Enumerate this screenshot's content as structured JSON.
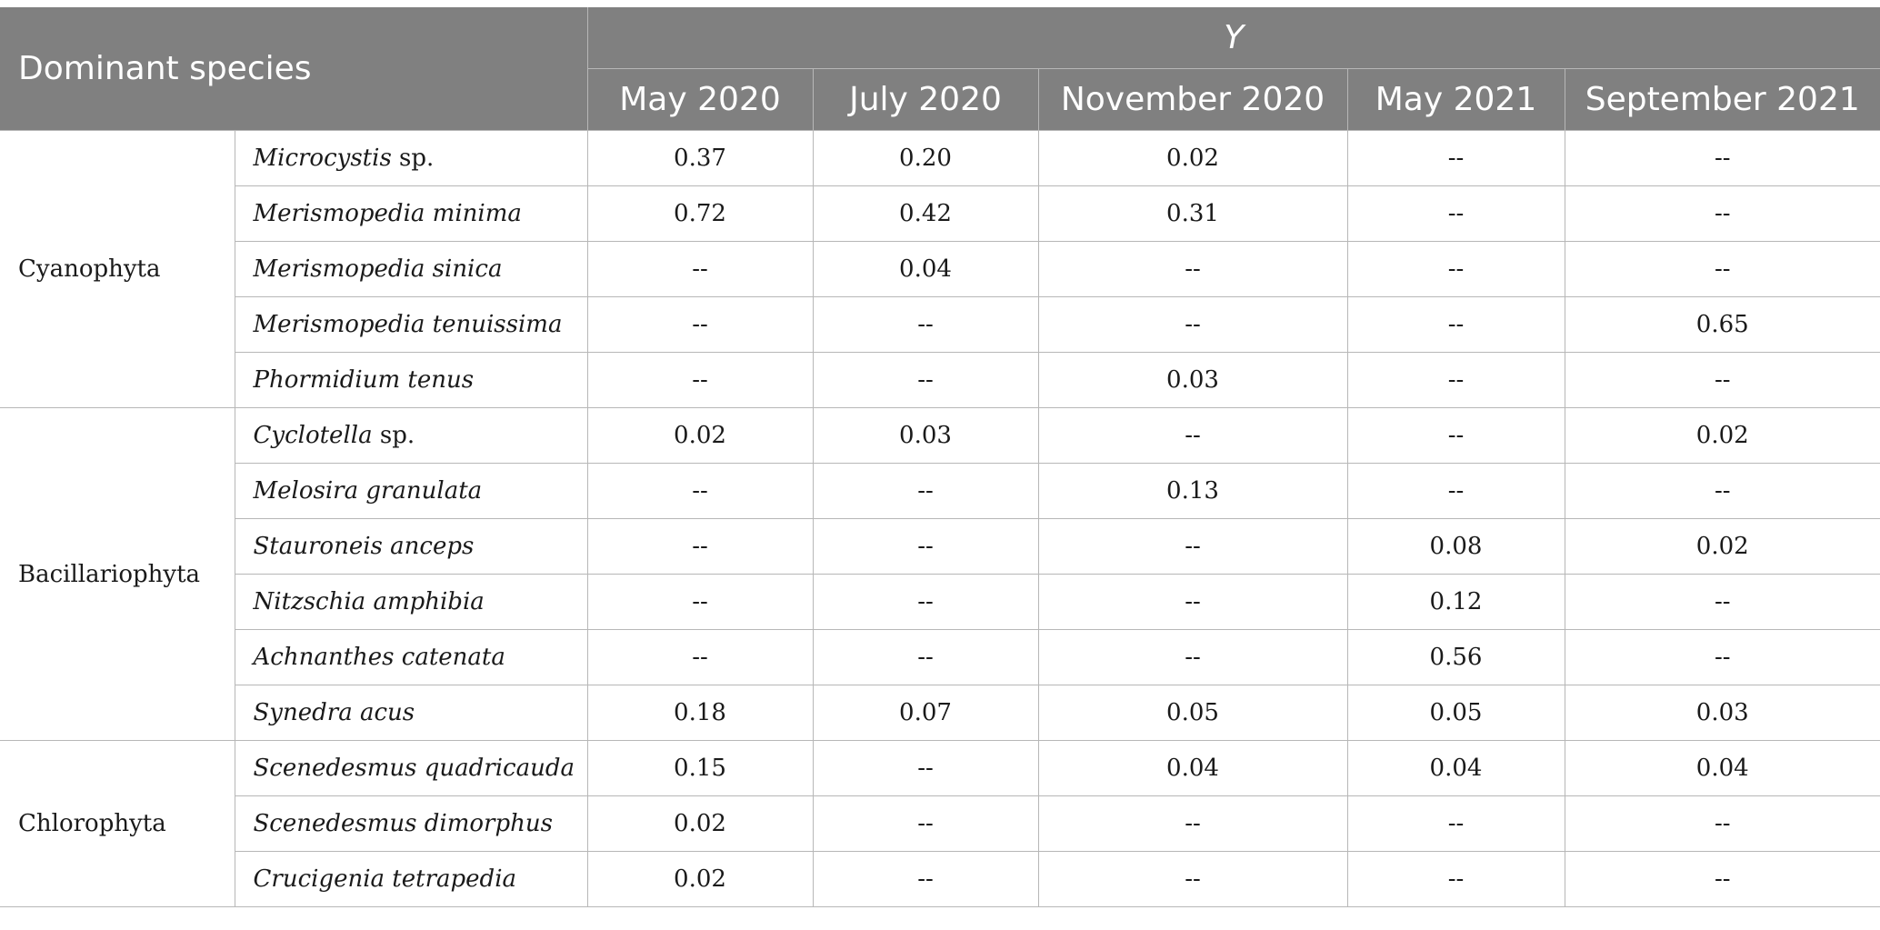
{
  "header": {
    "corner": "Dominant species",
    "y_label": "Y",
    "months": [
      "May 2020",
      "July 2020",
      "November 2020",
      "May 2021",
      "September 2021"
    ]
  },
  "rows": [
    {
      "group": "Cyanophyta",
      "species_italic": "Microcystis",
      "species_suffix": " sp.",
      "values": [
        "0.37",
        "0.20",
        "0.02",
        "--",
        "--"
      ]
    },
    {
      "group": "",
      "species_italic": "Merismopedia minima",
      "species_suffix": "",
      "values": [
        "0.72",
        "0.42",
        "0.31",
        "--",
        "--"
      ]
    },
    {
      "group": "",
      "species_italic": "Merismopedia sinica",
      "species_suffix": "",
      "values": [
        "--",
        "0.04",
        "--",
        "--",
        "--"
      ]
    },
    {
      "group": "",
      "species_italic": "Merismopedia tenuissima",
      "species_suffix": "",
      "values": [
        "--",
        "--",
        "--",
        "--",
        "0.65"
      ]
    },
    {
      "group": "",
      "species_italic": "Phormidium tenus",
      "species_suffix": "",
      "values": [
        "--",
        "--",
        "0.03",
        "--",
        "--"
      ]
    },
    {
      "group": "Bacillariophyta",
      "species_italic": "Cyclotella",
      "species_suffix": " sp.",
      "values": [
        "0.02",
        "0.03",
        "--",
        "--",
        "0.02"
      ]
    },
    {
      "group": "",
      "species_italic": "Melosira granulata",
      "species_suffix": "",
      "values": [
        "--",
        "--",
        "0.13",
        "--",
        "--"
      ]
    },
    {
      "group": "",
      "species_italic": "Stauroneis anceps",
      "species_suffix": "",
      "values": [
        "--",
        "--",
        "--",
        "0.08",
        "0.02"
      ]
    },
    {
      "group": "",
      "species_italic": "Nitzschia amphibia",
      "species_suffix": "",
      "values": [
        "--",
        "--",
        "--",
        "0.12",
        "--"
      ]
    },
    {
      "group": "",
      "species_italic": "Achnanthes catenata",
      "species_suffix": "",
      "values": [
        "--",
        "--",
        "--",
        "0.56",
        "--"
      ]
    },
    {
      "group": "",
      "species_italic": "Synedra acus",
      "species_suffix": "",
      "values": [
        "0.18",
        "0.07",
        "0.05",
        "0.05",
        "0.03"
      ]
    },
    {
      "group": "Chlorophyta",
      "species_italic": "Scenedesmus quadricauda",
      "species_suffix": "",
      "values": [
        "0.15",
        "--",
        "0.04",
        "0.04",
        "0.04"
      ]
    },
    {
      "group": "",
      "species_italic": "Scenedesmus dimorphus",
      "species_suffix": "",
      "values": [
        "0.02",
        "--",
        "--",
        "--",
        "--"
      ]
    },
    {
      "group": "",
      "species_italic": "Crucigenia tetrapedia",
      "species_suffix": "",
      "values": [
        "0.02",
        "--",
        "--",
        "--",
        "--"
      ]
    }
  ]
}
